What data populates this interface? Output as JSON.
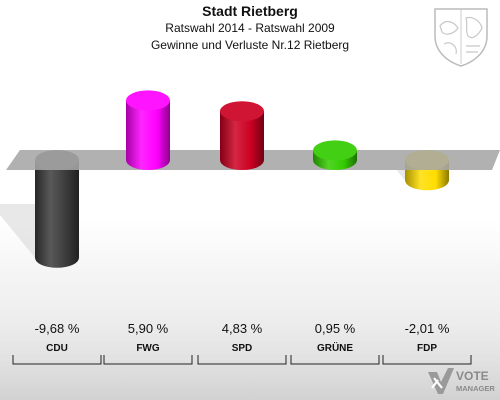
{
  "header": {
    "title": "Stadt Rietberg",
    "subtitle": "Ratswahl 2014 - Ratswahl 2009",
    "subtitle2": "Gewinne und Verluste Nr.12 Rietberg"
  },
  "logo": {
    "text_line1": "VOTE",
    "text_line2": "MANAGER"
  },
  "chart_data": {
    "type": "bar",
    "title": "Stadt Rietberg",
    "subtitle": "Ratswahl 2014 - Ratswahl 2009 / Gewinne und Verluste Nr.12 Rietberg",
    "categories": [
      "CDU",
      "FWG",
      "SPD",
      "GRÜNE",
      "FDP"
    ],
    "values": [
      -9.68,
      5.9,
      4.83,
      0.95,
      -2.01
    ],
    "value_labels": [
      "-9,68 %",
      "5,90 %",
      "4,83 %",
      "0,95 %",
      "-2,01 %"
    ],
    "colors": [
      "#3c3c3c",
      "#ff00ff",
      "#cc0022",
      "#33cc00",
      "#ffdd00"
    ],
    "unit": "%",
    "xlabel": "",
    "ylabel": "",
    "grid": false,
    "legend": "none",
    "ylim": [
      -11,
      11
    ]
  }
}
